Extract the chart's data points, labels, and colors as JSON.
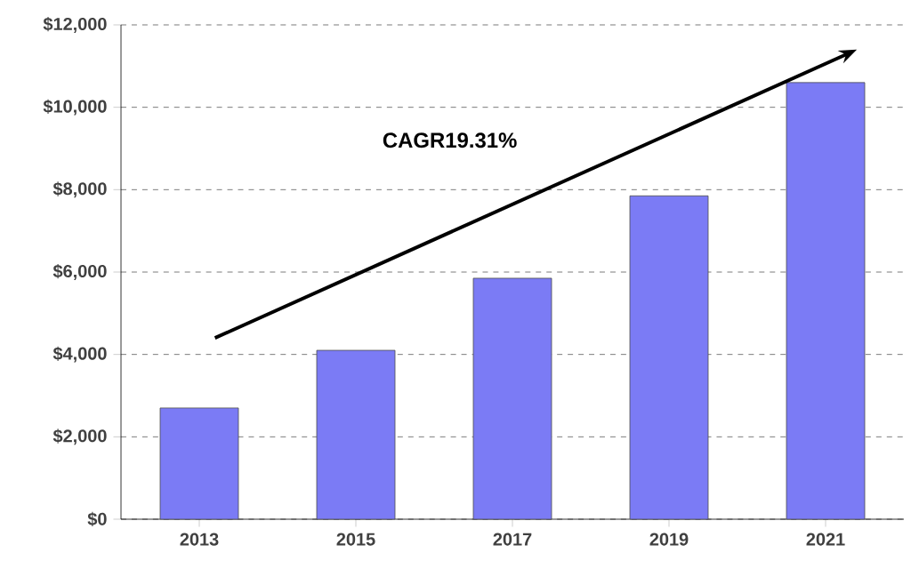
{
  "chart_data": {
    "type": "bar",
    "categories": [
      "2013",
      "2015",
      "2017",
      "2019",
      "2021"
    ],
    "values": [
      2700,
      4100,
      5850,
      7850,
      10600
    ],
    "color": "#7b7bf5",
    "ylim": [
      0,
      12000
    ],
    "yticks": [
      {
        "value": 0,
        "label": "$0"
      },
      {
        "value": 2000,
        "label": "$2,000"
      },
      {
        "value": 4000,
        "label": "$4,000"
      },
      {
        "value": 6000,
        "label": "$6,000"
      },
      {
        "value": 8000,
        "label": "$8,000"
      },
      {
        "value": 10000,
        "label": "$10,000"
      },
      {
        "value": 12000,
        "label": "$12,000"
      }
    ],
    "grid": "y",
    "line_style": "dashed",
    "annotations": [
      "CAGR19.31%"
    ]
  }
}
